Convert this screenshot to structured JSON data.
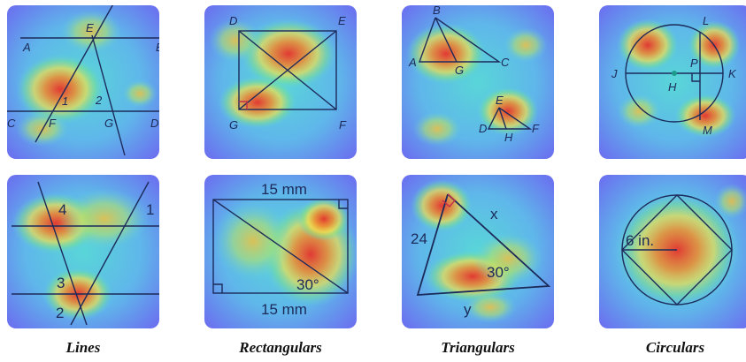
{
  "captions": [
    "Lines",
    "Rectangulars",
    "Triangulars",
    "Circulars"
  ],
  "panels": {
    "p1": {
      "labels": [
        "A",
        "E",
        "B",
        "C",
        "F",
        "1",
        "2",
        "G",
        "D"
      ]
    },
    "p2": {
      "labels": [
        "D",
        "E",
        "G",
        "F"
      ]
    },
    "p3": {
      "labels": [
        "B",
        "A",
        "G",
        "C",
        "E",
        "D",
        "H",
        "F"
      ]
    },
    "p4": {
      "labels": [
        "L",
        "J",
        "P",
        "H",
        "K",
        "M"
      ]
    },
    "p5": {
      "labels": [
        "4",
        "1",
        "3",
        "2"
      ]
    },
    "p6": {
      "labels": [
        "15 mm",
        "15 mm",
        "30°"
      ]
    },
    "p7": {
      "labels": [
        "x",
        "24",
        "30°",
        "y"
      ]
    },
    "p8": {
      "labels": [
        "6 in."
      ]
    }
  },
  "colors": {
    "line": "#1c2a5a",
    "cold": "#6b6df0",
    "hot": "#e23a2a"
  }
}
